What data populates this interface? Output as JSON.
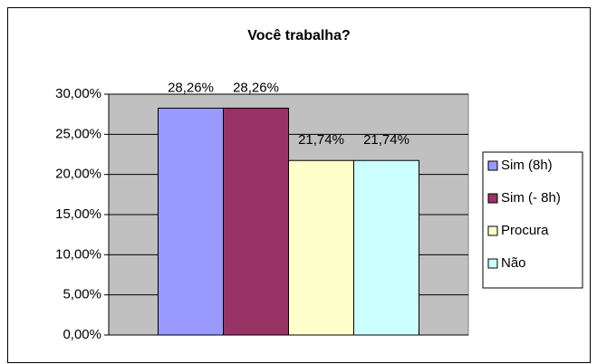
{
  "chart_data": {
    "type": "bar",
    "title": "Você trabalha?",
    "categories": [
      null
    ],
    "series": [
      {
        "name": "Sim (8h)",
        "color": "#9999ff",
        "values": [
          28.26
        ],
        "value_labels": [
          "28,26%"
        ]
      },
      {
        "name": "Sim (- 8h)",
        "color": "#993366",
        "values": [
          28.26
        ],
        "value_labels": [
          "28,26%"
        ]
      },
      {
        "name": "Procura",
        "color": "#ffffcc",
        "values": [
          21.74
        ],
        "value_labels": [
          "21,74%"
        ]
      },
      {
        "name": "Não",
        "color": "#ccffff",
        "values": [
          21.74
        ],
        "value_labels": [
          "21,74%"
        ]
      }
    ],
    "ylim": [
      0,
      30
    ],
    "yticks": [
      {
        "value": 0,
        "label": "0,00%"
      },
      {
        "value": 5,
        "label": "5,00%"
      },
      {
        "value": 10,
        "label": "10,00%"
      },
      {
        "value": 15,
        "label": "15,00%"
      },
      {
        "value": 20,
        "label": "20,00%"
      },
      {
        "value": 25,
        "label": "25,00%"
      },
      {
        "value": 30,
        "label": "30,00%"
      }
    ],
    "grid": true,
    "legend": "right",
    "plot_background": "#c0c0c0"
  }
}
